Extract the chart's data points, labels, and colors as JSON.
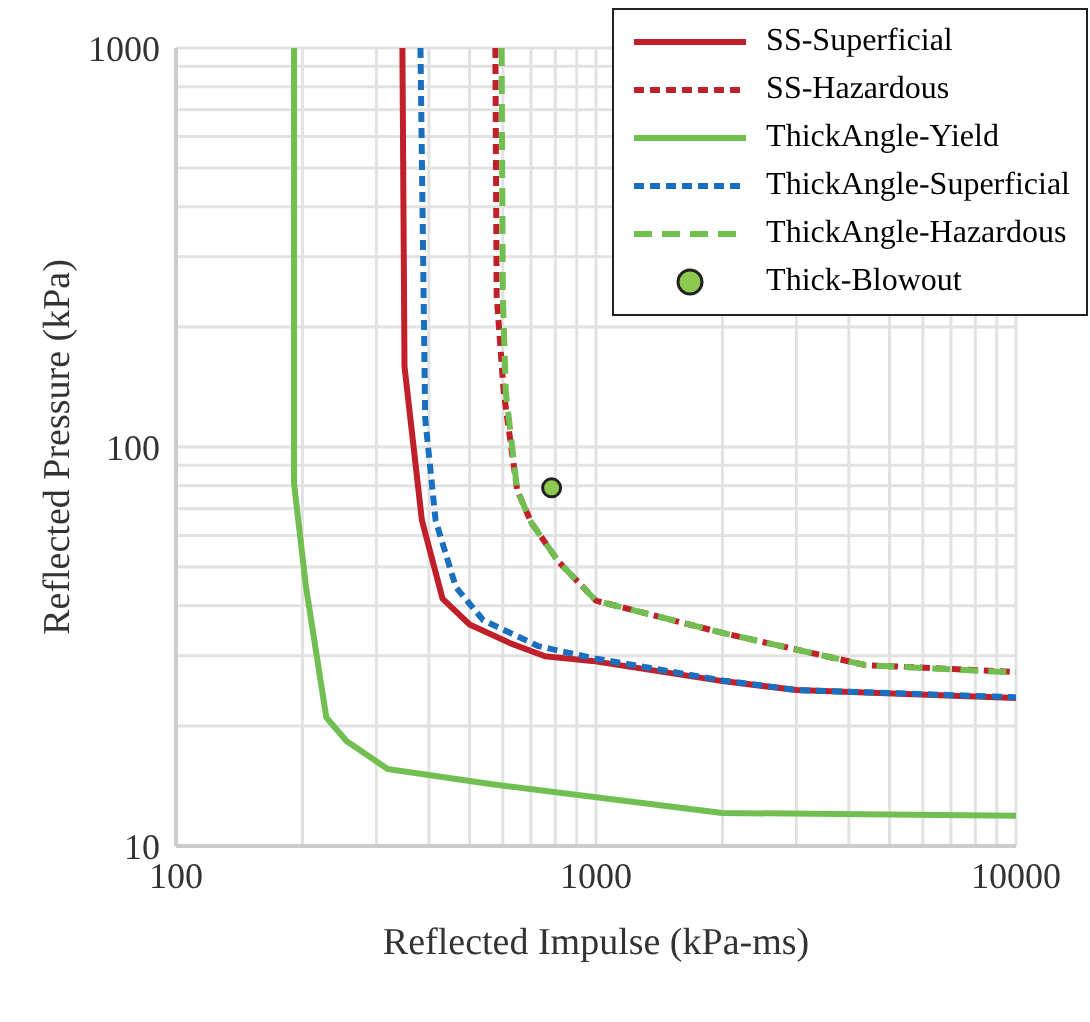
{
  "chart_data": {
    "type": "line",
    "xlabel": "Reflected Impulse (kPa-ms)",
    "ylabel": "Reflected Pressure (kPa)",
    "log": "xy",
    "grid": true,
    "legend": "top right",
    "marker": "none",
    "xlim": [
      100,
      10000
    ],
    "ylim": [
      10,
      1000
    ],
    "xticks": [
      100,
      {
        "value": 200,
        "label": null
      },
      {
        "value": 300,
        "label": null
      },
      {
        "value": 400,
        "label": null
      },
      {
        "value": 500,
        "label": null
      },
      {
        "value": 600,
        "label": null
      },
      {
        "value": 700,
        "label": null
      },
      {
        "value": 800,
        "label": null
      },
      {
        "value": 900,
        "label": null
      },
      1000,
      {
        "value": 2000,
        "label": null
      },
      {
        "value": 3000,
        "label": null
      },
      {
        "value": 4000,
        "label": null
      },
      {
        "value": 5000,
        "label": null
      },
      {
        "value": 6000,
        "label": null
      },
      {
        "value": 7000,
        "label": null
      },
      {
        "value": 8000,
        "label": null
      },
      {
        "value": 9000,
        "label": null
      },
      10000
    ],
    "yticks": [
      10,
      {
        "value": 20,
        "label": null
      },
      {
        "value": 30,
        "label": null
      },
      {
        "value": 40,
        "label": null
      },
      {
        "value": 50,
        "label": null
      },
      {
        "value": 60,
        "label": null
      },
      {
        "value": 70,
        "label": null
      },
      {
        "value": 80,
        "label": null
      },
      {
        "value": 90,
        "label": null
      },
      100,
      {
        "value": 200,
        "label": null
      },
      {
        "value": 300,
        "label": null
      },
      {
        "value": 400,
        "label": null
      },
      {
        "value": 500,
        "label": null
      },
      {
        "value": 600,
        "label": null
      },
      {
        "value": 700,
        "label": null
      },
      {
        "value": 800,
        "label": null
      },
      {
        "value": 900,
        "label": null
      },
      1000
    ],
    "series": [
      {
        "name": "SS-Superficial",
        "color": "#c0202a",
        "line_style": "solid",
        "x": [
          346,
          350,
          385,
          431,
          500,
          626,
          756,
          979,
          2000,
          3000,
          10000
        ],
        "values": [
          1000,
          159,
          65.5,
          41.7,
          35.9,
          32.2,
          29.9,
          29.1,
          25.9,
          24.6,
          23.5
        ]
      },
      {
        "name": "SS-Hazardous",
        "color": "#c0202a",
        "line_style": "dotted",
        "x": [
          576,
          580,
          603,
          649,
          701,
          813,
          1000,
          2000,
          4380,
          10000
        ],
        "values": [
          1000,
          240,
          137,
          78,
          64.7,
          51.7,
          41.2,
          34.2,
          28.4,
          27.3
        ]
      },
      {
        "name": "ThickAngle-Yield",
        "color": "#70bf50",
        "line_style": "solid",
        "x": [
          191,
          191,
          204,
          228,
          255,
          319,
          560,
          2000,
          10000
        ],
        "values": [
          1000,
          81,
          44.5,
          21.0,
          18.3,
          15.6,
          14.3,
          12.1,
          11.9
        ]
      },
      {
        "name": "ThickAngle-Superficial",
        "color": "#1a70c0",
        "line_style": "dotted",
        "x": [
          382,
          392,
          415,
          464,
          539,
          728,
          979,
          2000,
          3000,
          10000
        ],
        "values": [
          1000,
          118,
          65.5,
          44.5,
          36.8,
          31.7,
          29.6,
          26.0,
          24.6,
          23.6
        ]
      },
      {
        "name": "ThickAngle-Hazardous",
        "color": "#70bf50",
        "line_style": "dashed",
        "x": [
          596,
          600,
          610,
          649,
          701,
          813,
          1000,
          2000,
          4380,
          10000
        ],
        "values": [
          1000,
          240,
          137,
          78,
          64.7,
          51.7,
          41.2,
          34.2,
          28.4,
          27.2
        ]
      },
      {
        "name": "Thick-Blowout",
        "type": "scatter",
        "color": "#8dc850",
        "marker": "circle",
        "x": [
          784
        ],
        "values": [
          79
        ]
      }
    ]
  }
}
